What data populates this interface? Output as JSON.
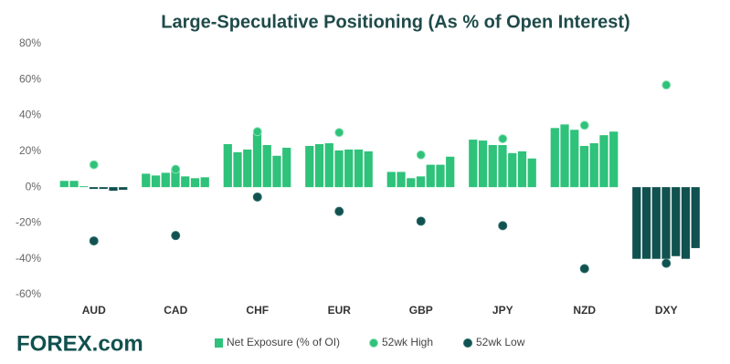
{
  "chart_data": {
    "type": "bar",
    "title": "Large-Speculative Positioning (As % of Open Interest)",
    "categories": [
      "AUD",
      "CAD",
      "CHF",
      "EUR",
      "GBP",
      "JPY",
      "NZD",
      "DXY"
    ],
    "series": [
      {
        "name": "Net Exposure (% of OI)",
        "color": "#2ec27a",
        "negative_color": "#11514f",
        "values": [
          [
            3.5,
            3.5,
            0.5,
            -1,
            -1,
            -2,
            -1.5
          ],
          [
            7.5,
            6.5,
            8,
            10.5,
            6,
            5,
            5.5
          ],
          [
            24,
            19.5,
            21,
            30,
            23.5,
            17.5,
            22
          ],
          [
            23,
            24,
            24.5,
            20.5,
            21,
            21,
            20
          ],
          [
            8.5,
            8.5,
            5,
            6,
            12.5,
            12.5,
            17
          ],
          [
            26.5,
            26,
            23.5,
            23.5,
            19,
            20,
            16
          ],
          [
            33,
            35,
            32,
            23,
            24.5,
            29,
            31
          ],
          [
            -40,
            -40,
            -40,
            -40,
            -38.5,
            -40,
            -34
          ]
        ]
      },
      {
        "name": "52wk High",
        "color": "#2ec27a",
        "values": [
          12.5,
          10,
          31,
          30.5,
          18,
          27,
          34.5,
          57
        ]
      },
      {
        "name": "52wk Low",
        "color": "#11514f",
        "values": [
          -30,
          -27,
          -5.5,
          -13.5,
          -19,
          -21.5,
          -45.5,
          -42.5
        ]
      }
    ],
    "ylim": [
      -60,
      80
    ],
    "yticks": [
      {
        "value": -60,
        "label": "-60%"
      },
      {
        "value": -40,
        "label": "-40%"
      },
      {
        "value": -20,
        "label": "-20%"
      },
      {
        "value": 0,
        "label": "0%"
      },
      {
        "value": 20,
        "label": "20%"
      },
      {
        "value": 40,
        "label": "40%"
      },
      {
        "value": 60,
        "label": "60%"
      },
      {
        "value": 80,
        "label": "80%"
      }
    ],
    "grid": false,
    "legend": "bottom",
    "logo": "FOREX.com"
  }
}
